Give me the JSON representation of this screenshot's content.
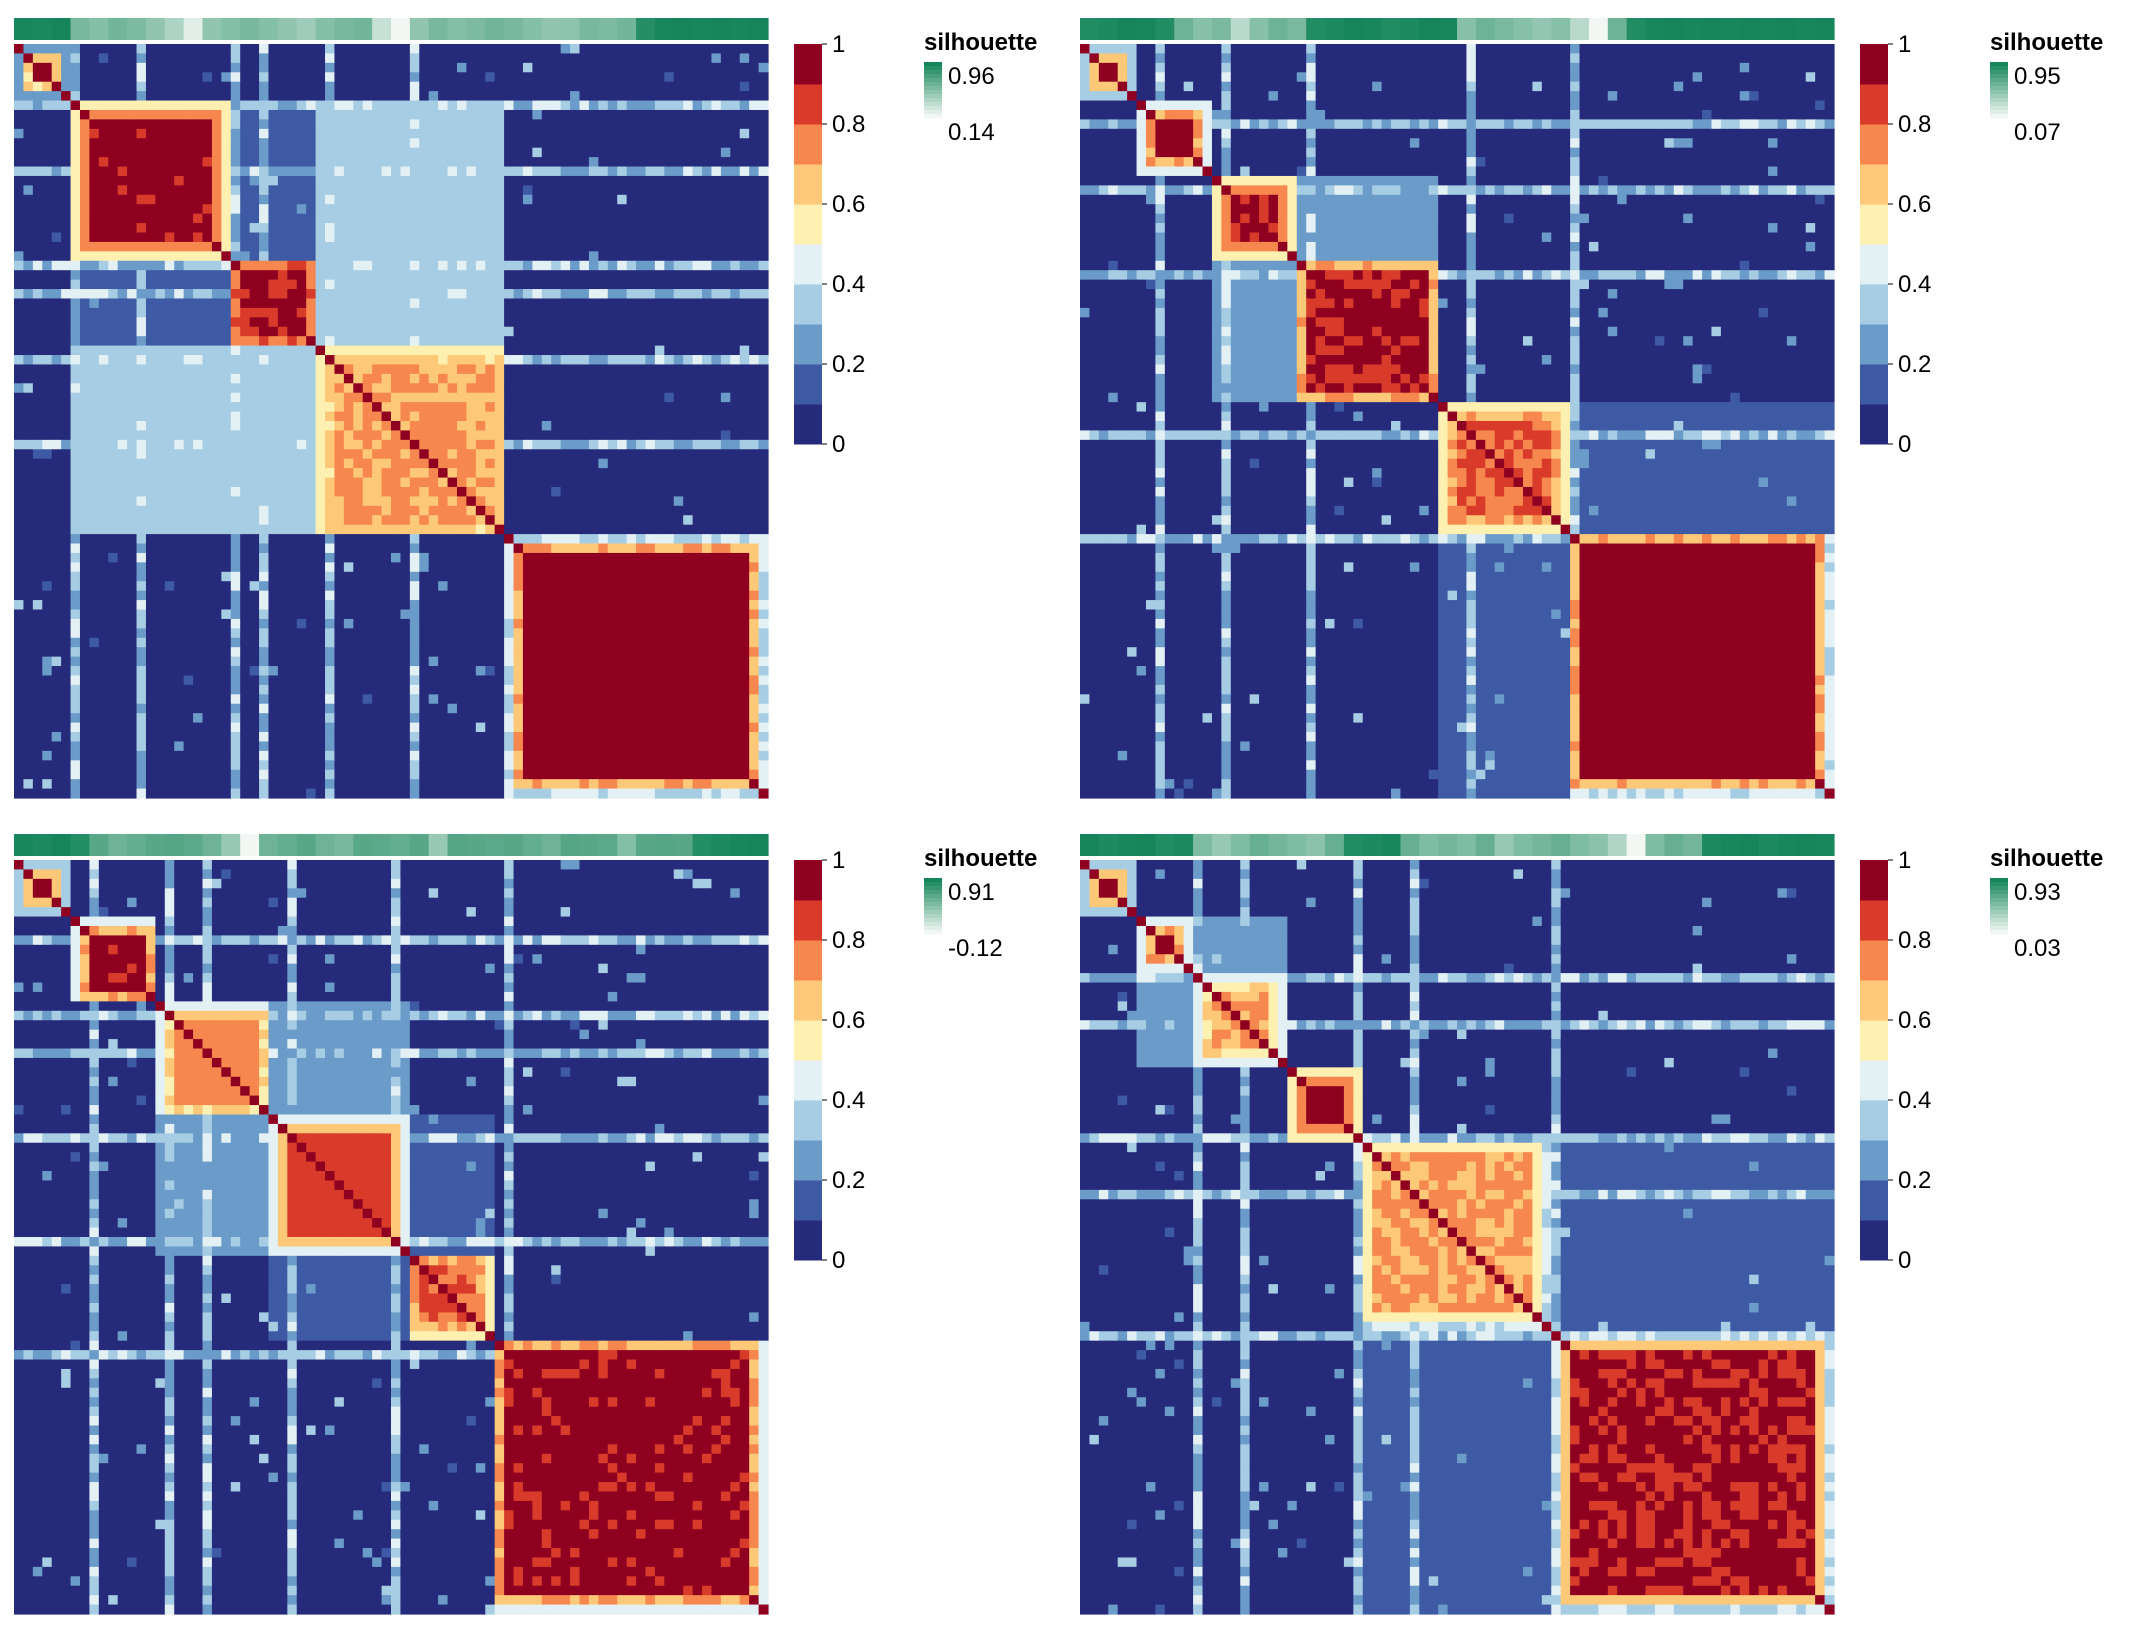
{
  "palette": {
    "heatmap": [
      "#262a7a",
      "#3f5aa5",
      "#6b9bc8",
      "#a6cde3",
      "#e3f0f4",
      "#fdf0b0",
      "#fdc978",
      "#f6874e",
      "#d93b2b",
      "#8f0020"
    ],
    "silhouette_high": "#16865a",
    "silhouette_low": "#f2f7f4",
    "divider": "#ffffff"
  },
  "chart_data": [
    {
      "type": "heatmap",
      "legend_ticks": [
        "1",
        "0.8",
        "0.6",
        "0.4",
        "0.2",
        "0"
      ],
      "silhouette": {
        "title": "silhouette",
        "max_label": "0.96",
        "min_label": "0.14",
        "max": 0.96,
        "min": 0.14
      },
      "blocks": [
        {
          "start": 0,
          "end": 0.075,
          "base": 1.0,
          "edge": 0.3
        },
        {
          "start": 0.075,
          "end": 0.285,
          "base": 0.97,
          "edge": 0.6
        },
        {
          "start": 0.285,
          "end": 0.405,
          "base": 0.95,
          "edge": 0.7
        },
        {
          "start": 0.405,
          "end": 0.655,
          "base": 0.75,
          "edge": 0.6
        },
        {
          "start": 0.655,
          "end": 1.0,
          "base": 1.0,
          "edge": 0.45
        }
      ],
      "links": [
        {
          "a": 1,
          "b": 3,
          "v": 0.35
        },
        {
          "a": 2,
          "b": 3,
          "v": 0.3
        },
        {
          "a": 1,
          "b": 2,
          "v": 0.15
        }
      ],
      "stripes": [
        0.08,
        0.165,
        0.29,
        0.335,
        0.42,
        0.53
      ],
      "silhouette_values": [
        0.95,
        0.94,
        0.96,
        0.6,
        0.55,
        0.62,
        0.58,
        0.5,
        0.4,
        0.2,
        0.5,
        0.55,
        0.6,
        0.55,
        0.5,
        0.45,
        0.55,
        0.6,
        0.62,
        0.3,
        0.14,
        0.5,
        0.6,
        0.55,
        0.58,
        0.62,
        0.6,
        0.55,
        0.5,
        0.52,
        0.6,
        0.58,
        0.62,
        0.9,
        0.95,
        0.96,
        0.95,
        0.96,
        0.95,
        0.96
      ]
    },
    {
      "type": "heatmap",
      "legend_ticks": [
        "1",
        "0.8",
        "0.6",
        "0.4",
        "0.2",
        "0"
      ],
      "silhouette": {
        "title": "silhouette",
        "max_label": "0.95",
        "min_label": "0.07",
        "max": 0.95,
        "min": 0.07
      },
      "blocks": [
        {
          "start": 0,
          "end": 0.075,
          "base": 1.0,
          "edge": 0.4
        },
        {
          "start": 0.075,
          "end": 0.175,
          "base": 1.0,
          "edge": 0.5
        },
        {
          "start": 0.175,
          "end": 0.285,
          "base": 0.95,
          "edge": 0.6
        },
        {
          "start": 0.285,
          "end": 0.48,
          "base": 0.95,
          "edge": 0.5
        },
        {
          "start": 0.48,
          "end": 0.645,
          "base": 0.85,
          "edge": 0.6
        },
        {
          "start": 0.645,
          "end": 1.0,
          "base": 1.0,
          "edge": 0.45
        }
      ],
      "links": [
        {
          "a": 2,
          "b": 3,
          "v": 0.25
        },
        {
          "a": 4,
          "b": 5,
          "v": 0.1
        }
      ],
      "stripes": [
        0.105,
        0.19,
        0.3,
        0.52,
        0.66
      ],
      "silhouette_values": [
        0.9,
        0.92,
        0.95,
        0.94,
        0.9,
        0.6,
        0.5,
        0.55,
        0.3,
        0.5,
        0.6,
        0.55,
        0.9,
        0.92,
        0.95,
        0.94,
        0.9,
        0.92,
        0.95,
        0.94,
        0.5,
        0.6,
        0.55,
        0.5,
        0.45,
        0.5,
        0.3,
        0.07,
        0.6,
        0.9,
        0.94,
        0.95,
        0.94,
        0.95,
        0.94,
        0.95,
        0.94,
        0.95,
        0.94,
        0.95
      ]
    },
    {
      "type": "heatmap",
      "legend_ticks": [
        "1",
        "0.8",
        "0.6",
        "0.4",
        "0.2",
        "0"
      ],
      "silhouette": {
        "title": "silhouette",
        "max_label": "0.91",
        "min_label": "-0.12",
        "max": 0.91,
        "min": -0.12
      },
      "blocks": [
        {
          "start": 0,
          "end": 0.075,
          "base": 1.0,
          "edge": 0.4
        },
        {
          "start": 0.075,
          "end": 0.19,
          "base": 0.97,
          "edge": 0.5
        },
        {
          "start": 0.19,
          "end": 0.34,
          "base": 0.8,
          "edge": 0.5
        },
        {
          "start": 0.34,
          "end": 0.52,
          "base": 0.9,
          "edge": 0.5
        },
        {
          "start": 0.52,
          "end": 0.635,
          "base": 0.85,
          "edge": 0.6
        },
        {
          "start": 0.635,
          "end": 1.0,
          "base": 0.97,
          "edge": 0.5
        }
      ],
      "links": [
        {
          "a": 2,
          "b": 3,
          "v": 0.2
        },
        {
          "a": 3,
          "b": 4,
          "v": 0.1
        }
      ],
      "stripes": [
        0.1,
        0.21,
        0.255,
        0.37,
        0.51,
        0.66
      ],
      "silhouette_values": [
        0.9,
        0.88,
        0.91,
        0.85,
        0.6,
        0.5,
        0.55,
        0.6,
        0.62,
        0.58,
        0.5,
        0.3,
        -0.12,
        0.5,
        0.55,
        0.6,
        0.5,
        0.45,
        0.6,
        0.58,
        0.55,
        0.6,
        0.3,
        0.62,
        0.6,
        0.58,
        0.6,
        0.55,
        0.5,
        0.62,
        0.6,
        0.58,
        0.4,
        0.6,
        0.62,
        0.6,
        0.85,
        0.88,
        0.9,
        0.91
      ]
    },
    {
      "type": "heatmap",
      "legend_ticks": [
        "1",
        "0.8",
        "0.6",
        "0.4",
        "0.2",
        "0"
      ],
      "silhouette": {
        "title": "silhouette",
        "max_label": "0.93",
        "min_label": "0.03",
        "max": 0.93,
        "min": 0.03
      },
      "blocks": [
        {
          "start": 0,
          "end": 0.075,
          "base": 1.0,
          "edge": 0.4
        },
        {
          "start": 0.075,
          "end": 0.15,
          "base": 0.95,
          "edge": 0.5
        },
        {
          "start": 0.15,
          "end": 0.275,
          "base": 0.75,
          "edge": 0.5
        },
        {
          "start": 0.275,
          "end": 0.37,
          "base": 1.0,
          "edge": 0.6
        },
        {
          "start": 0.37,
          "end": 0.625,
          "base": 0.75,
          "edge": 0.45
        },
        {
          "start": 0.625,
          "end": 1.0,
          "base": 0.95,
          "edge": 0.45
        }
      ],
      "links": [
        {
          "a": 1,
          "b": 2,
          "v": 0.2
        },
        {
          "a": 4,
          "b": 5,
          "v": 0.15
        }
      ],
      "stripes": [
        0.16,
        0.22,
        0.37,
        0.44,
        0.63
      ],
      "silhouette_values": [
        0.93,
        0.9,
        0.92,
        0.93,
        0.88,
        0.9,
        0.5,
        0.4,
        0.5,
        0.6,
        0.55,
        0.5,
        0.45,
        0.6,
        0.88,
        0.9,
        0.92,
        0.6,
        0.5,
        0.55,
        0.5,
        0.6,
        0.4,
        0.5,
        0.55,
        0.6,
        0.5,
        0.45,
        0.3,
        0.03,
        0.5,
        0.6,
        0.55,
        0.9,
        0.92,
        0.93,
        0.9,
        0.92,
        0.93,
        0.92
      ]
    }
  ]
}
